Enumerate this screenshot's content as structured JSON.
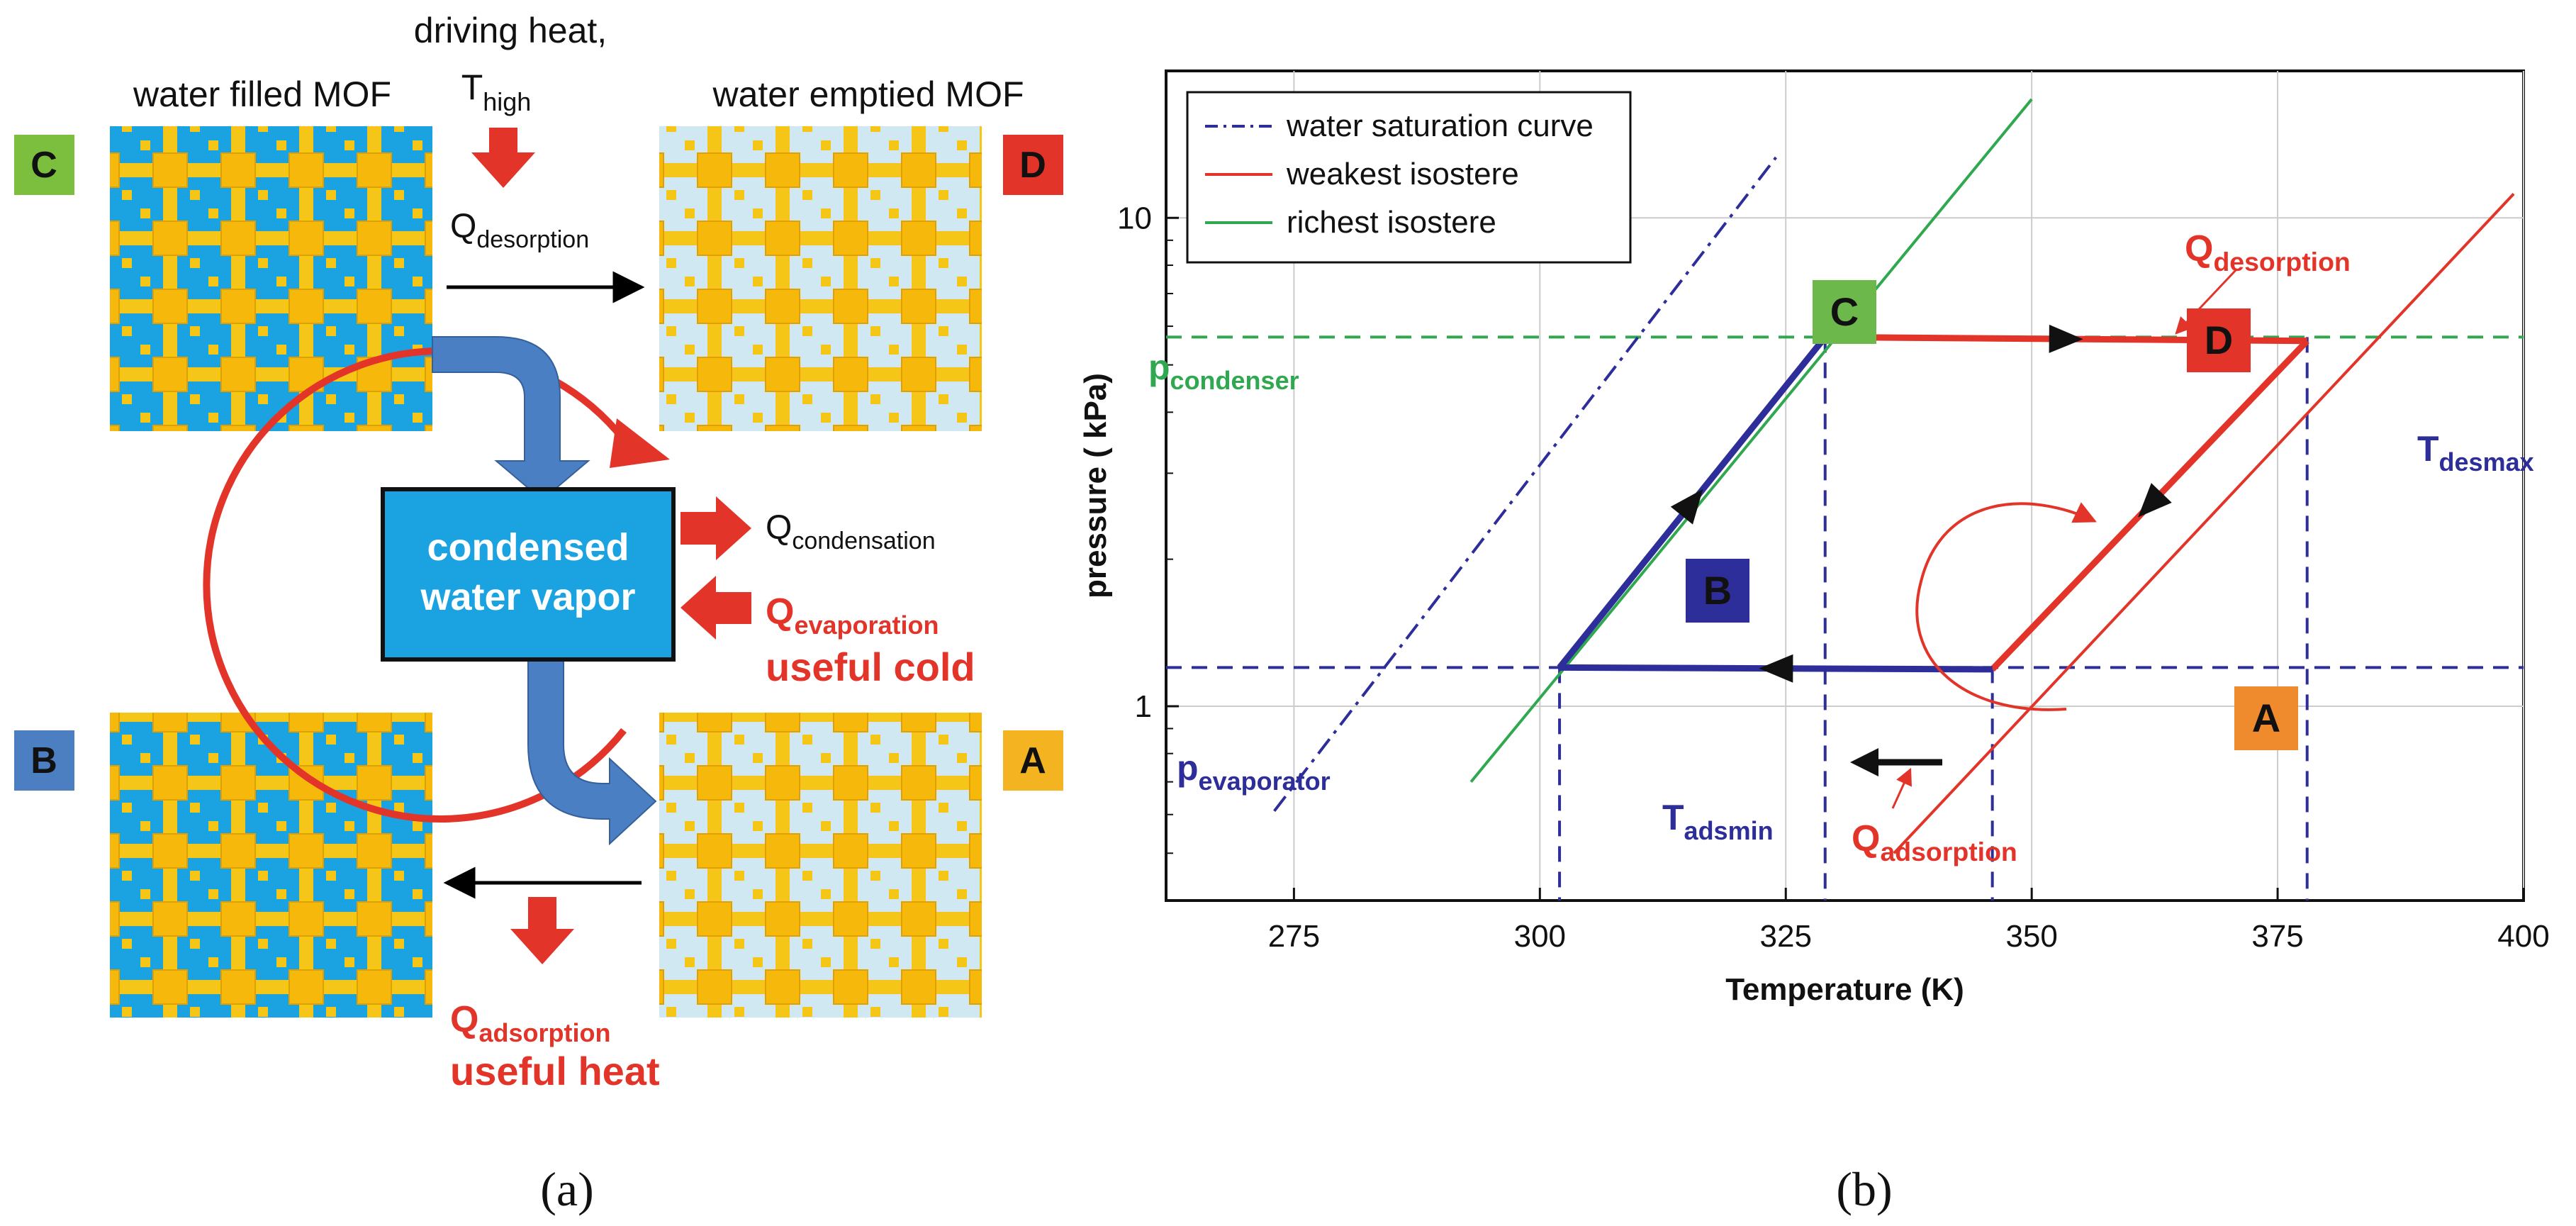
{
  "panel_a": {
    "caption": "(a)",
    "driving_heat": "driving heat,",
    "t_high_main": "T",
    "t_high_sub": "high",
    "water_filled_mof": "water filled MOF",
    "water_emptied_mof": "water emptied MOF",
    "q_desorption_main": "Q",
    "q_desorption_sub": "desorption",
    "q_condensation_main": "Q",
    "q_condensation_sub": "condensation",
    "q_evaporation_main": "Q",
    "q_evaporation_sub": "evaporation",
    "useful_cold": "useful cold",
    "q_adsorption_main": "Q",
    "q_adsorption_sub": "adsorption",
    "useful_heat": "useful heat",
    "condensed_line1": "condensed",
    "condensed_line2": "water vapor",
    "state_labels": {
      "C": "C",
      "D": "D",
      "B": "B",
      "A": "A"
    },
    "colors": {
      "filled_bg": "#1aa3e0",
      "emptied_bg": "#cfe8f2",
      "mof_yellow": "#f5c518",
      "arrow_red": "#e3342a",
      "arrow_blue": "#4a7fc4",
      "label_C": "#7cbf3e",
      "label_D": "#e3342a",
      "label_B": "#4c7ec2",
      "label_A": "#f4b321"
    }
  },
  "panel_b": {
    "caption": "(b)",
    "chart_data": {
      "type": "line",
      "xlabel": "Temperature  (K)",
      "ylabel": "pressure  ( kPa)",
      "xlim": [
        262,
        400
      ],
      "ylim": [
        0.4,
        20
      ],
      "yscale": "log",
      "xticks": [
        275,
        300,
        325,
        350,
        375,
        400
      ],
      "yticks": [
        1,
        10
      ],
      "grid": true,
      "legend": {
        "position": "top-left",
        "entries": [
          {
            "label": "water saturation curve",
            "color": "#2e2e9a",
            "style": "dashdot"
          },
          {
            "label": "weakest isostere",
            "color": "#e3342a",
            "style": "solid"
          },
          {
            "label": "richest isostere",
            "color": "#2fa84f",
            "style": "solid"
          }
        ]
      },
      "series": [
        {
          "name": "water saturation curve",
          "color": "#2e2e9a",
          "style": "dashdot",
          "points": [
            [
              273,
              0.61
            ],
            [
              324,
              13.3
            ]
          ]
        },
        {
          "name": "richest isostere",
          "color": "#2fa84f",
          "style": "solid",
          "points": [
            [
              293,
              0.7
            ],
            [
              350,
              17.5
            ]
          ]
        },
        {
          "name": "weakest isostere",
          "color": "#e3342a",
          "style": "solid",
          "points": [
            [
              336,
              0.5
            ],
            [
              399,
              11.2
            ]
          ]
        }
      ],
      "cycle": [
        {
          "from": "B",
          "to": "C",
          "color": "#2e2e9a",
          "points": [
            [
              302,
              1.2
            ],
            [
              329,
              5.7
            ]
          ]
        },
        {
          "from": "C",
          "to": "D",
          "color": "#e3342a",
          "points": [
            [
              329,
              5.7
            ],
            [
              378,
              5.6
            ]
          ]
        },
        {
          "from": "D",
          "to": "A",
          "color": "#e3342a",
          "points": [
            [
              378,
              5.6
            ],
            [
              346,
              1.19
            ]
          ]
        },
        {
          "from": "A",
          "to": "B",
          "color": "#2e2e9a",
          "points": [
            [
              346,
              1.19
            ],
            [
              302,
              1.2
            ]
          ]
        }
      ],
      "reference_lines": {
        "p_condenser": 5.7,
        "p_evaporator": 1.2,
        "T_adsmin": 302,
        "T_desmax": 378,
        "T_C": 329,
        "T_A": 346
      },
      "points": [
        {
          "label": "C",
          "x": 329,
          "y": 5.7,
          "color": "#6cb84a"
        },
        {
          "label": "D",
          "x": 378,
          "y": 5.6,
          "color": "#e3342a"
        },
        {
          "label": "B",
          "x": 302,
          "y": 1.2,
          "color": "#2e2e9a"
        },
        {
          "label": "A",
          "x": 346,
          "y": 1.19,
          "color": "#ef8b2c"
        }
      ],
      "annotations": {
        "p_condenser_main": "p",
        "p_condenser_sub": "condenser",
        "p_evaporator_main": "p",
        "p_evaporator_sub": "evaporator",
        "t_adsmin_main": "T",
        "t_adsmin_sub": "adsmin",
        "t_desmax_main": "T",
        "t_desmax_sub": "desmax",
        "q_desorption_main": "Q",
        "q_desorption_sub": "desorption",
        "q_adsorption_main": "Q",
        "q_adsorption_sub": "adsorption"
      }
    }
  }
}
